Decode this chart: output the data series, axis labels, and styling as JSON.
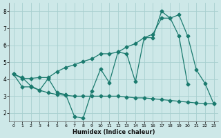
{
  "xlabel": "Humidex (Indice chaleur)",
  "background_color": "#cde8e8",
  "grid_color": "#a8d0d0",
  "line_color": "#1a7a6e",
  "xlim": [
    -0.5,
    23.5
  ],
  "ylim": [
    1.5,
    8.5
  ],
  "xticks": [
    0,
    1,
    2,
    3,
    4,
    5,
    6,
    7,
    8,
    9,
    10,
    11,
    12,
    13,
    14,
    15,
    16,
    17,
    18,
    19,
    20,
    21,
    22,
    23
  ],
  "yticks": [
    2,
    3,
    4,
    5,
    6,
    7,
    8
  ],
  "line1_x": [
    0,
    1,
    2,
    3,
    4,
    5,
    6,
    7,
    8,
    9,
    10,
    11,
    12,
    13,
    14,
    15,
    16,
    17,
    18,
    19,
    20
  ],
  "line1_y": [
    4.3,
    4.1,
    3.6,
    3.35,
    4.05,
    3.2,
    3.1,
    1.8,
    1.7,
    3.3,
    4.6,
    3.8,
    5.6,
    5.5,
    3.85,
    6.45,
    6.45,
    8.0,
    7.6,
    6.55,
    3.7
  ],
  "line2_x": [
    0,
    1,
    2,
    3,
    4,
    5,
    6,
    7,
    8,
    9,
    10,
    11,
    12,
    13,
    14,
    15,
    16,
    17,
    18,
    19,
    20,
    21,
    22,
    23
  ],
  "line2_y": [
    4.3,
    4.05,
    4.05,
    4.1,
    4.1,
    4.45,
    4.7,
    4.85,
    5.05,
    5.2,
    5.5,
    5.5,
    5.6,
    5.9,
    6.1,
    6.45,
    6.65,
    7.6,
    7.6,
    7.8,
    6.55,
    4.55,
    3.75,
    2.55
  ],
  "line3_x": [
    0,
    1,
    2,
    3,
    4,
    5,
    6,
    7,
    8,
    9,
    10,
    11,
    12,
    13,
    14,
    15,
    16,
    17,
    18,
    19,
    20,
    21,
    22,
    23
  ],
  "line3_y": [
    4.3,
    3.55,
    3.55,
    3.35,
    3.2,
    3.1,
    3.05,
    3.0,
    3.0,
    3.0,
    3.0,
    3.0,
    3.0,
    2.95,
    2.9,
    2.9,
    2.85,
    2.8,
    2.75,
    2.7,
    2.65,
    2.6,
    2.55,
    2.55
  ]
}
